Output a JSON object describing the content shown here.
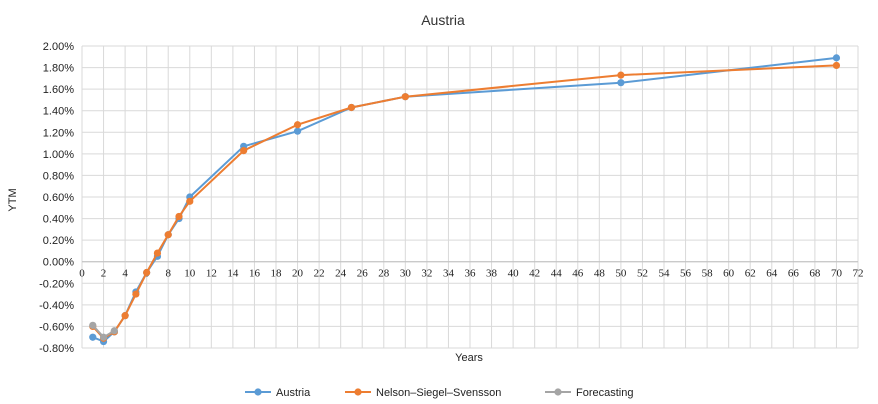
{
  "chart_data": {
    "type": "line",
    "title": "Austria",
    "xlabel": "Years",
    "ylabel": "YTM",
    "xlim": [
      0,
      72
    ],
    "ylim": [
      -0.8,
      2.0
    ],
    "x_ticks": [
      0,
      2,
      4,
      6,
      8,
      10,
      12,
      14,
      16,
      18,
      20,
      22,
      24,
      26,
      28,
      30,
      32,
      34,
      36,
      38,
      40,
      42,
      44,
      46,
      48,
      50,
      52,
      54,
      56,
      58,
      60,
      62,
      64,
      66,
      68,
      70,
      72
    ],
    "y_ticks": [
      "-0.80%",
      "-0.60%",
      "-0.40%",
      "-0.20%",
      "0.00%",
      "0.20%",
      "0.40%",
      "0.60%",
      "0.80%",
      "1.00%",
      "1.20%",
      "1.40%",
      "1.60%",
      "1.80%",
      "2.00%"
    ],
    "grid": true,
    "legend_position": "bottom",
    "series": [
      {
        "name": "Austria",
        "color": "#5b9bd5",
        "x": [
          1,
          2,
          3,
          4,
          5,
          6,
          7,
          8,
          9,
          10,
          15,
          20,
          25,
          30,
          50,
          70
        ],
        "y": [
          -0.7,
          -0.74,
          -0.65,
          -0.5,
          -0.28,
          -0.1,
          0.05,
          0.25,
          0.4,
          0.6,
          1.07,
          1.21,
          1.43,
          1.53,
          1.66,
          1.89
        ]
      },
      {
        "name": "Nelson–Siegel–Svensson",
        "color": "#ed7d31",
        "x": [
          1,
          2,
          3,
          4,
          5,
          6,
          7,
          8,
          9,
          10,
          15,
          20,
          25,
          30,
          50,
          70
        ],
        "y": [
          -0.6,
          -0.71,
          -0.65,
          -0.5,
          -0.3,
          -0.1,
          0.08,
          0.25,
          0.42,
          0.56,
          1.03,
          1.27,
          1.43,
          1.53,
          1.73,
          1.82
        ]
      },
      {
        "name": "Forecasting",
        "color": "#a5a5a5",
        "x": [
          1,
          2,
          3
        ],
        "y": [
          -0.59,
          -0.7,
          -0.64
        ]
      }
    ]
  }
}
